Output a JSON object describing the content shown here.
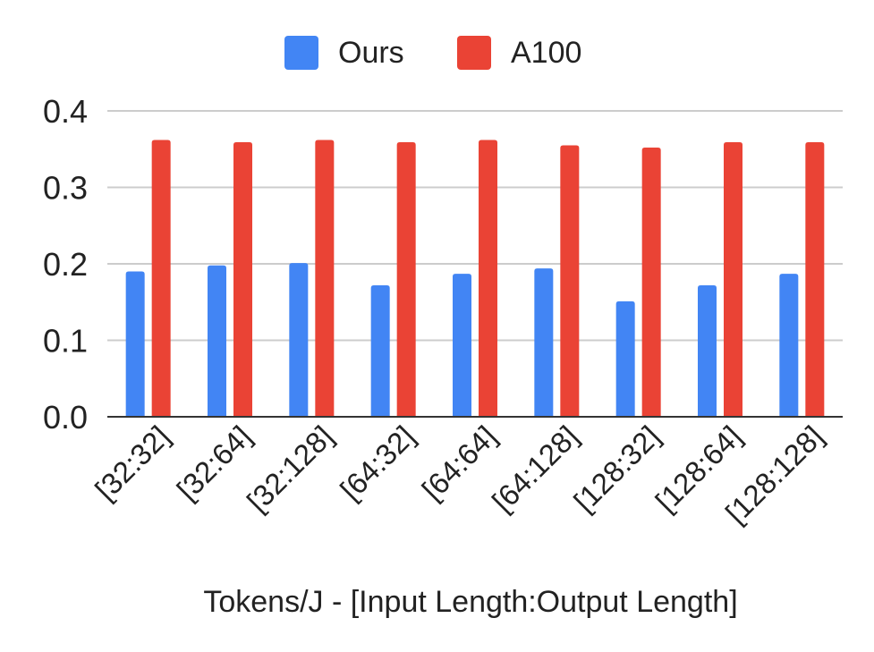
{
  "chart_data": {
    "type": "bar",
    "title": "",
    "xlabel": "Tokens/J - [Input Length:Output Length]",
    "ylabel": "",
    "categories": [
      "[32:32]",
      "[32:64]",
      "[32:128]",
      "[64:32]",
      "[64:64]",
      "[64:128]",
      "[128:32]",
      "[128:64]",
      "[128:128]"
    ],
    "series": [
      {
        "name": "Ours",
        "color": "#4285f4",
        "values": [
          0.19,
          0.198,
          0.201,
          0.172,
          0.187,
          0.194,
          0.151,
          0.172,
          0.187
        ]
      },
      {
        "name": "A100",
        "color": "#ea4335",
        "values": [
          0.362,
          0.359,
          0.362,
          0.359,
          0.362,
          0.355,
          0.352,
          0.359,
          0.359
        ]
      }
    ],
    "ylim": [
      0,
      0.4
    ],
    "yticks": [
      "0.0",
      "0.1",
      "0.2",
      "0.3",
      "0.4"
    ],
    "grid": true,
    "legend_position": "top"
  }
}
